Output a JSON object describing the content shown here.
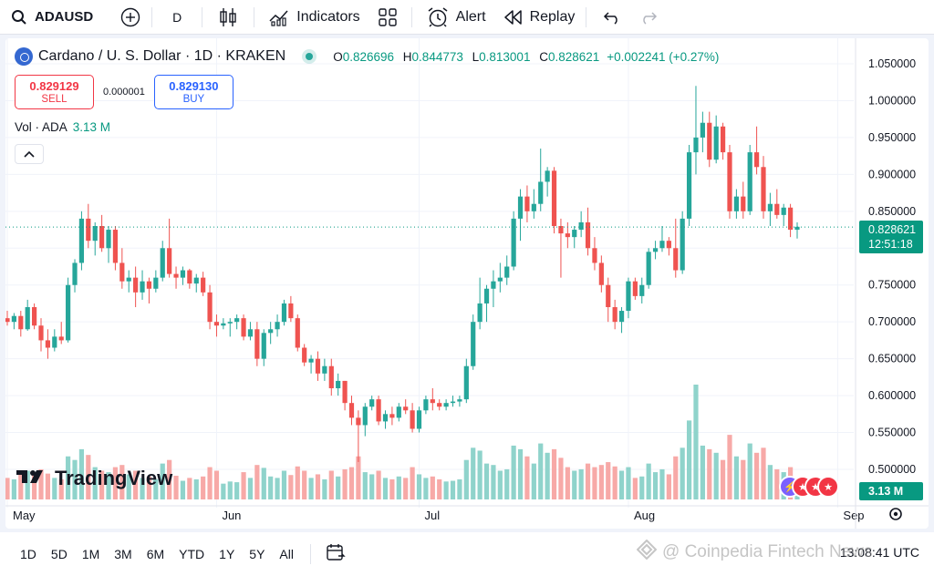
{
  "toolbar": {
    "symbol": "ADAUSD",
    "interval": "D",
    "indicators": "Indicators",
    "alert": "Alert",
    "replay": "Replay"
  },
  "legend": {
    "title": "Cardano / U. S. Dollar · 1D · KRAKEN",
    "o_key": "O",
    "o": "0.826696",
    "h_key": "H",
    "h": "0.844773",
    "l_key": "L",
    "l": "0.813001",
    "c_key": "C",
    "c": "0.828621",
    "change": "+0.002241 (+0.27%)"
  },
  "trade": {
    "sell_price": "0.829129",
    "sell_label": "SELL",
    "spread": "0.000001",
    "buy_price": "0.829130",
    "buy_label": "BUY"
  },
  "volume": {
    "label": "Vol · ADA",
    "value": "3.13 M"
  },
  "price_label": {
    "price": "0.828621",
    "countdown": "12:51:18"
  },
  "volume_label": "3.13 M",
  "brand": "TradingView",
  "ranges": [
    "1D",
    "5D",
    "1M",
    "3M",
    "6M",
    "YTD",
    "1Y",
    "5Y",
    "All"
  ],
  "clock": "13:08:41 UTC",
  "watermark": "@ Coinpedia Fintech News",
  "colors": {
    "up": "#26a69a",
    "down": "#ef5350",
    "up_vol": "#8fd3cb",
    "down_vol": "#f7a9a7"
  },
  "chart_data": {
    "type": "candlestick",
    "y_ticks": [
      "1.050000",
      "1.000000",
      "0.950000",
      "0.900000",
      "0.850000",
      "0.800000",
      "0.750000",
      "0.700000",
      "0.650000",
      "0.600000",
      "0.550000",
      "0.500000"
    ],
    "ylim": [
      0.48,
      1.06
    ],
    "x_labels": [
      {
        "label": "May",
        "index": 0
      },
      {
        "label": "Jun",
        "index": 31
      },
      {
        "label": "Jul",
        "index": 61
      },
      {
        "label": "Aug",
        "index": 92
      },
      {
        "label": "Sep",
        "index": 123
      }
    ],
    "last_price": 0.828621,
    "candles": [
      [
        0.705,
        0.715,
        0.695,
        0.7,
        30
      ],
      [
        0.7,
        0.712,
        0.69,
        0.708,
        28
      ],
      [
        0.708,
        0.715,
        0.68,
        0.69,
        35
      ],
      [
        0.69,
        0.73,
        0.688,
        0.72,
        40
      ],
      [
        0.72,
        0.725,
        0.69,
        0.695,
        38
      ],
      [
        0.695,
        0.705,
        0.66,
        0.675,
        42
      ],
      [
        0.675,
        0.69,
        0.65,
        0.665,
        36
      ],
      [
        0.665,
        0.69,
        0.66,
        0.68,
        30
      ],
      [
        0.68,
        0.7,
        0.67,
        0.675,
        28
      ],
      [
        0.675,
        0.76,
        0.672,
        0.75,
        60
      ],
      [
        0.75,
        0.785,
        0.74,
        0.78,
        55
      ],
      [
        0.78,
        0.85,
        0.77,
        0.84,
        70
      ],
      [
        0.84,
        0.86,
        0.8,
        0.81,
        62
      ],
      [
        0.81,
        0.835,
        0.79,
        0.83,
        45
      ],
      [
        0.83,
        0.845,
        0.795,
        0.8,
        40
      ],
      [
        0.8,
        0.83,
        0.78,
        0.825,
        38
      ],
      [
        0.825,
        0.83,
        0.77,
        0.78,
        45
      ],
      [
        0.78,
        0.8,
        0.745,
        0.755,
        48
      ],
      [
        0.755,
        0.77,
        0.74,
        0.76,
        35
      ],
      [
        0.76,
        0.775,
        0.72,
        0.74,
        40
      ],
      [
        0.74,
        0.77,
        0.73,
        0.755,
        30
      ],
      [
        0.755,
        0.76,
        0.725,
        0.745,
        32
      ],
      [
        0.745,
        0.77,
        0.74,
        0.76,
        28
      ],
      [
        0.76,
        0.81,
        0.755,
        0.8,
        50
      ],
      [
        0.8,
        0.84,
        0.76,
        0.765,
        55
      ],
      [
        0.765,
        0.775,
        0.745,
        0.76,
        33
      ],
      [
        0.76,
        0.775,
        0.75,
        0.77,
        26
      ],
      [
        0.77,
        0.772,
        0.745,
        0.752,
        30
      ],
      [
        0.752,
        0.765,
        0.74,
        0.76,
        28
      ],
      [
        0.76,
        0.768,
        0.735,
        0.74,
        32
      ],
      [
        0.74,
        0.75,
        0.69,
        0.7,
        45
      ],
      [
        0.7,
        0.71,
        0.68,
        0.695,
        40
      ],
      [
        0.695,
        0.705,
        0.69,
        0.698,
        22
      ],
      [
        0.698,
        0.705,
        0.68,
        0.7,
        25
      ],
      [
        0.7,
        0.71,
        0.69,
        0.705,
        24
      ],
      [
        0.705,
        0.71,
        0.675,
        0.68,
        38
      ],
      [
        0.68,
        0.7,
        0.675,
        0.69,
        30
      ],
      [
        0.69,
        0.7,
        0.64,
        0.65,
        48
      ],
      [
        0.65,
        0.69,
        0.64,
        0.685,
        44
      ],
      [
        0.685,
        0.7,
        0.67,
        0.69,
        32
      ],
      [
        0.69,
        0.71,
        0.68,
        0.7,
        30
      ],
      [
        0.7,
        0.73,
        0.695,
        0.725,
        40
      ],
      [
        0.725,
        0.735,
        0.7,
        0.705,
        34
      ],
      [
        0.705,
        0.71,
        0.66,
        0.665,
        46
      ],
      [
        0.665,
        0.67,
        0.64,
        0.645,
        40
      ],
      [
        0.645,
        0.655,
        0.63,
        0.65,
        30
      ],
      [
        0.65,
        0.66,
        0.62,
        0.63,
        35
      ],
      [
        0.63,
        0.65,
        0.62,
        0.64,
        28
      ],
      [
        0.64,
        0.65,
        0.6,
        0.61,
        40
      ],
      [
        0.61,
        0.63,
        0.6,
        0.62,
        32
      ],
      [
        0.62,
        0.62,
        0.58,
        0.59,
        42
      ],
      [
        0.59,
        0.6,
        0.56,
        0.57,
        45
      ],
      [
        0.57,
        0.58,
        0.51,
        0.56,
        60
      ],
      [
        0.56,
        0.59,
        0.545,
        0.585,
        38
      ],
      [
        0.585,
        0.6,
        0.58,
        0.595,
        35
      ],
      [
        0.595,
        0.6,
        0.56,
        0.565,
        40
      ],
      [
        0.565,
        0.58,
        0.555,
        0.575,
        30
      ],
      [
        0.575,
        0.585,
        0.56,
        0.57,
        28
      ],
      [
        0.57,
        0.59,
        0.565,
        0.585,
        32
      ],
      [
        0.585,
        0.595,
        0.575,
        0.58,
        30
      ],
      [
        0.58,
        0.59,
        0.55,
        0.555,
        45
      ],
      [
        0.555,
        0.585,
        0.55,
        0.58,
        35
      ],
      [
        0.58,
        0.6,
        0.575,
        0.595,
        30
      ],
      [
        0.595,
        0.61,
        0.58,
        0.59,
        32
      ],
      [
        0.59,
        0.595,
        0.58,
        0.585,
        28
      ],
      [
        0.585,
        0.595,
        0.58,
        0.59,
        25
      ],
      [
        0.59,
        0.6,
        0.585,
        0.592,
        26
      ],
      [
        0.592,
        0.6,
        0.585,
        0.595,
        28
      ],
      [
        0.595,
        0.65,
        0.59,
        0.64,
        55
      ],
      [
        0.64,
        0.71,
        0.635,
        0.7,
        72
      ],
      [
        0.7,
        0.76,
        0.69,
        0.725,
        68
      ],
      [
        0.725,
        0.75,
        0.7,
        0.745,
        50
      ],
      [
        0.745,
        0.77,
        0.72,
        0.755,
        48
      ],
      [
        0.755,
        0.78,
        0.74,
        0.76,
        40
      ],
      [
        0.76,
        0.79,
        0.75,
        0.775,
        42
      ],
      [
        0.775,
        0.85,
        0.77,
        0.84,
        75
      ],
      [
        0.84,
        0.88,
        0.81,
        0.87,
        70
      ],
      [
        0.87,
        0.885,
        0.835,
        0.85,
        60
      ],
      [
        0.85,
        0.88,
        0.84,
        0.86,
        50
      ],
      [
        0.86,
        0.935,
        0.85,
        0.89,
        78
      ],
      [
        0.89,
        0.91,
        0.87,
        0.905,
        65
      ],
      [
        0.905,
        0.91,
        0.82,
        0.83,
        70
      ],
      [
        0.83,
        0.84,
        0.76,
        0.82,
        58
      ],
      [
        0.82,
        0.835,
        0.8,
        0.815,
        45
      ],
      [
        0.815,
        0.83,
        0.8,
        0.825,
        40
      ],
      [
        0.825,
        0.85,
        0.815,
        0.835,
        42
      ],
      [
        0.835,
        0.855,
        0.79,
        0.8,
        50
      ],
      [
        0.8,
        0.815,
        0.77,
        0.78,
        45
      ],
      [
        0.78,
        0.79,
        0.74,
        0.75,
        48
      ],
      [
        0.75,
        0.76,
        0.7,
        0.72,
        52
      ],
      [
        0.72,
        0.73,
        0.69,
        0.7,
        46
      ],
      [
        0.7,
        0.72,
        0.685,
        0.715,
        40
      ],
      [
        0.715,
        0.76,
        0.705,
        0.755,
        45
      ],
      [
        0.755,
        0.76,
        0.73,
        0.735,
        30
      ],
      [
        0.735,
        0.76,
        0.725,
        0.75,
        32
      ],
      [
        0.75,
        0.8,
        0.745,
        0.795,
        50
      ],
      [
        0.795,
        0.81,
        0.785,
        0.8,
        38
      ],
      [
        0.8,
        0.83,
        0.795,
        0.81,
        42
      ],
      [
        0.81,
        0.815,
        0.79,
        0.8,
        35
      ],
      [
        0.8,
        0.84,
        0.76,
        0.77,
        60
      ],
      [
        0.77,
        0.85,
        0.765,
        0.84,
        72
      ],
      [
        0.84,
        0.94,
        0.83,
        0.93,
        110
      ],
      [
        0.93,
        1.02,
        0.9,
        0.95,
        160
      ],
      [
        0.95,
        0.985,
        0.93,
        0.97,
        75
      ],
      [
        0.97,
        0.985,
        0.91,
        0.92,
        70
      ],
      [
        0.92,
        0.98,
        0.915,
        0.965,
        65
      ],
      [
        0.965,
        0.97,
        0.92,
        0.93,
        55
      ],
      [
        0.93,
        0.94,
        0.84,
        0.85,
        90
      ],
      [
        0.85,
        0.88,
        0.84,
        0.87,
        60
      ],
      [
        0.87,
        0.89,
        0.84,
        0.85,
        55
      ],
      [
        0.85,
        0.94,
        0.845,
        0.93,
        78
      ],
      [
        0.93,
        0.965,
        0.9,
        0.91,
        65
      ],
      [
        0.91,
        0.925,
        0.84,
        0.85,
        72
      ],
      [
        0.85,
        0.875,
        0.83,
        0.86,
        48
      ],
      [
        0.86,
        0.88,
        0.84,
        0.845,
        42
      ],
      [
        0.845,
        0.86,
        0.83,
        0.855,
        38
      ],
      [
        0.855,
        0.86,
        0.815,
        0.825,
        45
      ],
      [
        0.825,
        0.835,
        0.813,
        0.829,
        30
      ]
    ]
  }
}
